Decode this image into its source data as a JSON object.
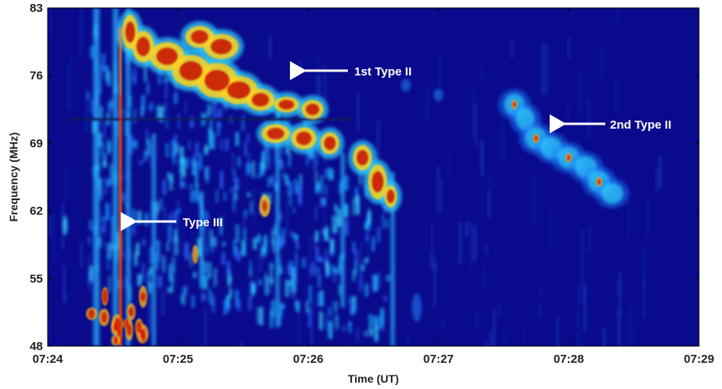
{
  "chart_data": {
    "type": "heatmap",
    "title": "",
    "xlabel": "Time (UT)",
    "ylabel": "Frequency (MHz)",
    "x_ticks": [
      "07:24",
      "07:25",
      "07:26",
      "07:27",
      "07:28",
      "07:29"
    ],
    "y_ticks": [
      "48",
      "55",
      "62",
      "69",
      "76",
      "83"
    ],
    "xlim": [
      "07:24",
      "07:29"
    ],
    "ylim": [
      48,
      83
    ],
    "colormap": "jet",
    "background_color": "#0a0a8c",
    "grid": false,
    "annotations": [
      {
        "text": "1st Type II",
        "arrow_tip": {
          "time": "07:25:59",
          "freq": 76.2
        }
      },
      {
        "text": "2nd Type II",
        "arrow_tip": {
          "time": "07:27:52",
          "freq": 70.5
        }
      },
      {
        "text": "Type III",
        "arrow_tip": {
          "time": "07:24:39",
          "freq": 61.4
        }
      }
    ]
  }
}
